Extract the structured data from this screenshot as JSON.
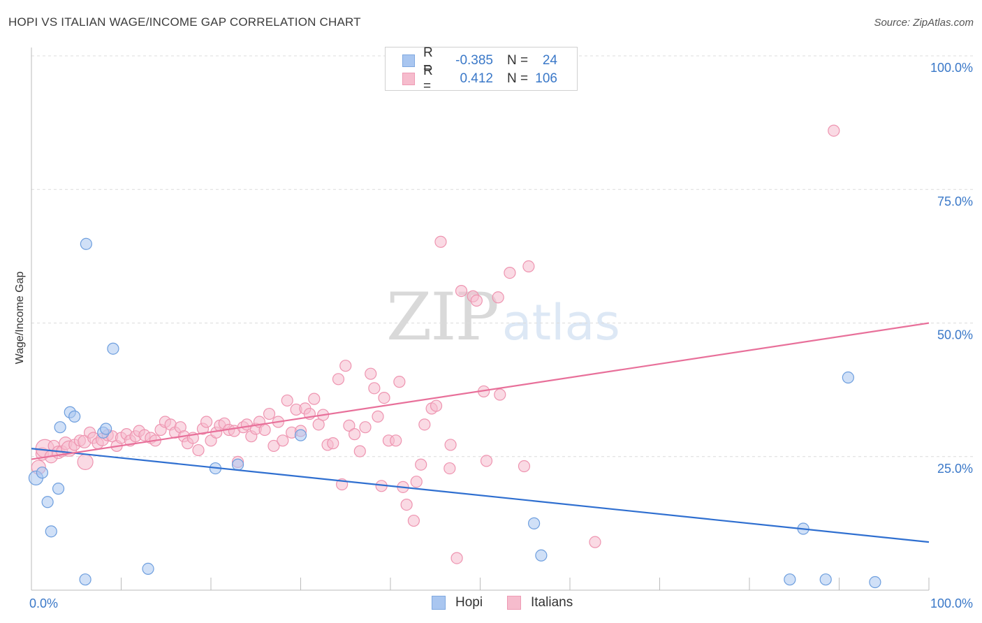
{
  "header": {
    "title": "HOPI VS ITALIAN WAGE/INCOME GAP CORRELATION CHART",
    "source": "Source: ZipAtlas.com"
  },
  "watermark": {
    "zip": "ZIP",
    "atlas": "atlas"
  },
  "legend": {
    "rows": [
      {
        "r_label": "R =",
        "r_value": "-0.385",
        "n_label": "N =",
        "n_value": "24",
        "color": "#a9c6f0",
        "border": "#7fa8e0"
      },
      {
        "r_label": "R =",
        "r_value": "0.412",
        "n_label": "N =",
        "n_value": "106",
        "color": "#f6bccd",
        "border": "#ee9ab4"
      }
    ]
  },
  "bottom_legend": {
    "hopi": "Hopi",
    "italians": "Italians"
  },
  "chart_data": {
    "type": "scatter",
    "title": "HOPI VS ITALIAN WAGE/INCOME GAP CORRELATION CHART",
    "xlabel": "",
    "ylabel": "Wage/Income Gap",
    "xlim": [
      0,
      100
    ],
    "ylim": [
      0,
      100
    ],
    "x_tick_labels": [
      "0.0%",
      "100.0%"
    ],
    "y_ticks": [
      25,
      50,
      75,
      100
    ],
    "y_tick_labels": [
      "25.0%",
      "50.0%",
      "75.0%",
      "100.0%"
    ],
    "grid": true,
    "series": [
      {
        "name": "Hopi",
        "color": "#a9c6f0",
        "stroke": "#6d9ede",
        "line_color": "#2f6fd0",
        "trend": {
          "x": [
            0,
            100
          ],
          "y": [
            26.5,
            9.0
          ]
        },
        "points": [
          [
            0.5,
            21.0,
            10
          ],
          [
            1.2,
            22.0,
            8
          ],
          [
            1.8,
            16.5,
            8
          ],
          [
            2.2,
            11.0,
            8
          ],
          [
            3.0,
            19.0,
            8
          ],
          [
            3.2,
            30.5,
            8
          ],
          [
            4.3,
            33.3,
            8
          ],
          [
            4.8,
            32.5,
            8
          ],
          [
            6.0,
            2.0,
            8
          ],
          [
            6.1,
            64.8,
            8
          ],
          [
            8.0,
            29.5,
            8
          ],
          [
            8.3,
            30.2,
            8
          ],
          [
            9.1,
            45.2,
            8
          ],
          [
            13.0,
            4.0,
            8
          ],
          [
            20.5,
            22.8,
            8
          ],
          [
            23.0,
            23.5,
            8
          ],
          [
            30.0,
            29.0,
            8
          ],
          [
            56.0,
            12.5,
            8
          ],
          [
            56.8,
            6.5,
            8
          ],
          [
            84.5,
            2.0,
            8
          ],
          [
            86.0,
            11.5,
            8
          ],
          [
            88.5,
            2.0,
            8
          ],
          [
            91.0,
            39.8,
            8
          ],
          [
            94.0,
            1.5,
            8
          ]
        ]
      },
      {
        "name": "Italians",
        "color": "#f6bccd",
        "stroke": "#ee94b0",
        "line_color": "#e8709a",
        "trend": {
          "x": [
            0,
            100
          ],
          "y": [
            24.5,
            50.0
          ]
        },
        "points": [
          [
            0.8,
            23.0,
            10
          ],
          [
            1.2,
            25.5,
            9
          ],
          [
            1.5,
            26.5,
            13
          ],
          [
            2.2,
            25.0,
            9
          ],
          [
            2.5,
            27.0,
            8
          ],
          [
            3.0,
            25.8,
            9
          ],
          [
            3.4,
            26.0,
            8
          ],
          [
            3.8,
            27.5,
            9
          ],
          [
            4.2,
            26.5,
            11
          ],
          [
            4.8,
            27.2,
            8
          ],
          [
            5.4,
            28.0,
            8
          ],
          [
            5.9,
            27.8,
            9
          ],
          [
            6.0,
            24.0,
            11
          ],
          [
            6.5,
            29.5,
            8
          ],
          [
            6.9,
            28.5,
            8
          ],
          [
            7.4,
            27.5,
            8
          ],
          [
            7.9,
            28.2,
            9
          ],
          [
            8.5,
            29.0,
            8
          ],
          [
            9.0,
            28.8,
            8
          ],
          [
            9.5,
            27.0,
            8
          ],
          [
            10.0,
            28.5,
            8
          ],
          [
            10.6,
            29.2,
            8
          ],
          [
            11.0,
            28.0,
            8
          ],
          [
            11.6,
            28.8,
            8
          ],
          [
            12.0,
            29.8,
            8
          ],
          [
            12.6,
            29.0,
            8
          ],
          [
            13.3,
            28.5,
            8
          ],
          [
            13.8,
            28.0,
            8
          ],
          [
            14.4,
            30.0,
            8
          ],
          [
            14.9,
            31.5,
            8
          ],
          [
            15.5,
            31.0,
            8
          ],
          [
            16.0,
            29.5,
            8
          ],
          [
            16.6,
            30.5,
            8
          ],
          [
            17.0,
            28.8,
            8
          ],
          [
            17.4,
            27.5,
            8
          ],
          [
            18.0,
            28.5,
            8
          ],
          [
            18.6,
            26.2,
            8
          ],
          [
            19.1,
            30.2,
            8
          ],
          [
            19.5,
            31.5,
            8
          ],
          [
            20.0,
            28.0,
            8
          ],
          [
            20.6,
            29.5,
            8
          ],
          [
            21.0,
            30.8,
            8
          ],
          [
            21.5,
            31.2,
            8
          ],
          [
            22.0,
            30.0,
            8
          ],
          [
            22.6,
            29.8,
            8
          ],
          [
            23.0,
            24.0,
            8
          ],
          [
            23.6,
            30.5,
            8
          ],
          [
            24.0,
            31.0,
            8
          ],
          [
            24.5,
            28.8,
            8
          ],
          [
            25.0,
            30.2,
            8
          ],
          [
            25.4,
            31.5,
            8
          ],
          [
            26.0,
            30.0,
            8
          ],
          [
            26.5,
            33.0,
            8
          ],
          [
            27.0,
            27.0,
            8
          ],
          [
            27.5,
            31.5,
            8
          ],
          [
            28.0,
            28.0,
            8
          ],
          [
            28.5,
            35.5,
            8
          ],
          [
            29.0,
            29.5,
            8
          ],
          [
            29.5,
            33.8,
            8
          ],
          [
            30.0,
            29.8,
            8
          ],
          [
            30.5,
            34.0,
            8
          ],
          [
            31.0,
            33.0,
            8
          ],
          [
            31.5,
            35.8,
            8
          ],
          [
            32.0,
            31.0,
            8
          ],
          [
            32.5,
            32.8,
            8
          ],
          [
            33.0,
            27.2,
            8
          ],
          [
            33.6,
            27.5,
            8
          ],
          [
            34.2,
            39.5,
            8
          ],
          [
            34.6,
            19.8,
            8
          ],
          [
            35.0,
            42.0,
            8
          ],
          [
            35.4,
            30.8,
            8
          ],
          [
            36.0,
            29.2,
            8
          ],
          [
            36.6,
            26.0,
            8
          ],
          [
            37.2,
            30.5,
            8
          ],
          [
            37.8,
            40.5,
            8
          ],
          [
            38.2,
            37.8,
            8
          ],
          [
            38.6,
            32.5,
            8
          ],
          [
            39.0,
            19.5,
            8
          ],
          [
            39.3,
            36.0,
            8
          ],
          [
            39.8,
            28.0,
            8
          ],
          [
            40.6,
            28.0,
            8
          ],
          [
            41.0,
            39.0,
            8
          ],
          [
            41.4,
            19.3,
            8
          ],
          [
            41.8,
            16.0,
            8
          ],
          [
            42.6,
            13.0,
            8
          ],
          [
            42.9,
            20.3,
            8
          ],
          [
            43.4,
            23.5,
            8
          ],
          [
            43.8,
            31.0,
            8
          ],
          [
            44.6,
            34.0,
            8
          ],
          [
            45.1,
            34.5,
            8
          ],
          [
            45.6,
            65.2,
            8
          ],
          [
            46.6,
            22.8,
            8
          ],
          [
            46.7,
            27.2,
            8
          ],
          [
            47.4,
            6.0,
            8
          ],
          [
            47.9,
            56.0,
            8
          ],
          [
            49.2,
            55.0,
            8
          ],
          [
            49.6,
            54.2,
            8
          ],
          [
            50.4,
            37.2,
            8
          ],
          [
            50.7,
            24.2,
            8
          ],
          [
            52.0,
            54.8,
            8
          ],
          [
            52.2,
            36.6,
            8
          ],
          [
            53.3,
            59.4,
            8
          ],
          [
            55.4,
            60.6,
            8
          ],
          [
            54.9,
            23.2,
            8
          ],
          [
            62.8,
            9.0,
            8
          ],
          [
            89.4,
            86.0,
            8
          ]
        ]
      }
    ]
  }
}
